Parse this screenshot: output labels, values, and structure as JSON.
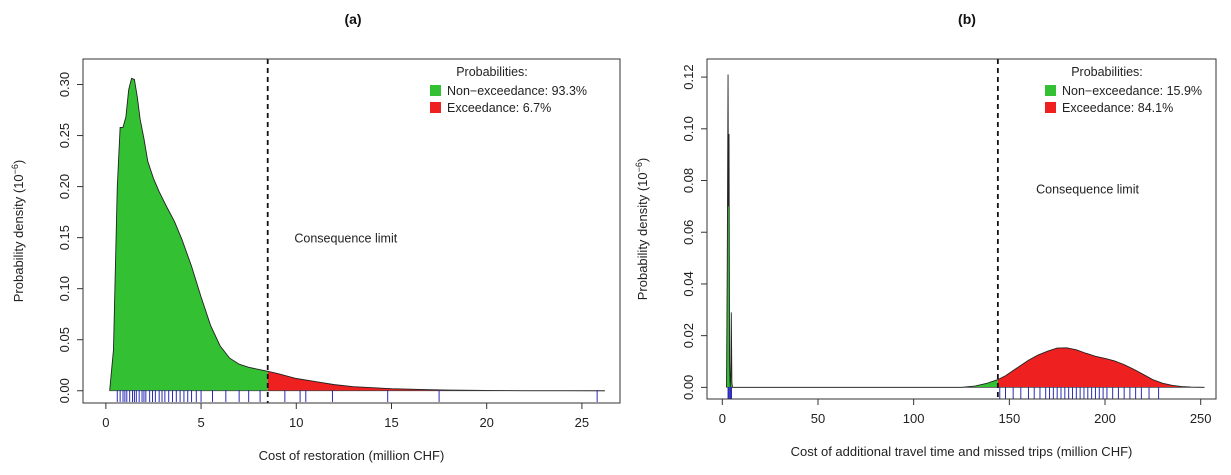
{
  "chart_data": [
    {
      "type": "area",
      "panel_label": "(a)",
      "xlabel": "Cost of restoration (million CHF)",
      "ylabel_prefix": "Probability density (10",
      "ylabel_exponent": "−6",
      "ylabel_suffix": ")",
      "xlim": [
        -1.2,
        27
      ],
      "ylim": [
        -0.012,
        0.325
      ],
      "xticks": [
        0,
        5,
        10,
        15,
        20,
        25
      ],
      "xtick_labels": [
        "0",
        "5",
        "10",
        "15",
        "20",
        "25"
      ],
      "yticks": [
        0.0,
        0.05,
        0.1,
        0.15,
        0.2,
        0.25,
        0.3
      ],
      "ytick_labels": [
        "0.00",
        "0.05",
        "0.10",
        "0.15",
        "0.20",
        "0.25",
        "0.30"
      ],
      "threshold": 8.5,
      "threshold_label": "Consequence limit",
      "annotation_pos": [
        9.9,
        0.145
      ],
      "legend_title": "Probabilities:",
      "legend_position": "top-right",
      "series": [
        {
          "name": "Non−exceedance: 93.3%",
          "color": "#33c033",
          "role": "below_threshold"
        },
        {
          "name": "Exceedance: 6.7%",
          "color": "#ee2020",
          "role": "above_threshold"
        }
      ],
      "density": {
        "x": [
          0.2,
          0.4,
          0.6,
          0.75,
          0.9,
          1.05,
          1.2,
          1.35,
          1.5,
          1.65,
          1.8,
          2.0,
          2.2,
          2.5,
          2.8,
          3.2,
          3.6,
          4.0,
          4.5,
          5.0,
          5.5,
          6.0,
          6.5,
          7.0,
          7.5,
          8.0,
          8.5,
          9.0,
          10.0,
          11.0,
          12.0,
          13.0,
          14.0,
          15.0,
          16.0,
          17.0,
          18.0,
          20.0,
          22.0,
          24.0,
          26.2
        ],
        "y": [
          0.0,
          0.04,
          0.2,
          0.258,
          0.258,
          0.268,
          0.295,
          0.306,
          0.305,
          0.288,
          0.266,
          0.247,
          0.225,
          0.208,
          0.195,
          0.18,
          0.166,
          0.148,
          0.122,
          0.092,
          0.064,
          0.044,
          0.032,
          0.026,
          0.023,
          0.021,
          0.019,
          0.017,
          0.012,
          0.009,
          0.006,
          0.004,
          0.003,
          0.002,
          0.0015,
          0.001,
          0.0007,
          0.0003,
          0.0001,
          5e-05,
          0.0
        ]
      },
      "rug": [
        0.6,
        0.75,
        0.9,
        1.0,
        1.1,
        1.25,
        1.4,
        1.5,
        1.6,
        1.75,
        1.9,
        2.0,
        2.1,
        2.3,
        2.45,
        2.6,
        2.8,
        2.95,
        3.1,
        3.3,
        3.5,
        3.7,
        3.9,
        4.1,
        4.3,
        4.5,
        4.75,
        5.0,
        5.6,
        6.3,
        7.0,
        7.5,
        8.1,
        9.4,
        10.2,
        10.5,
        11.9,
        14.8,
        17.5,
        25.8
      ]
    },
    {
      "type": "area",
      "panel_label": "(b)",
      "xlabel": "Cost of additional travel time and missed trips (million CHF)",
      "ylabel_prefix": "Probability density (10",
      "ylabel_exponent": "−6",
      "ylabel_suffix": ")",
      "xlim": [
        -8,
        258
      ],
      "ylim": [
        -0.0045,
        0.127
      ],
      "xticks": [
        0,
        50,
        100,
        150,
        200,
        250
      ],
      "xtick_labels": [
        "0",
        "50",
        "100",
        "150",
        "200",
        "250"
      ],
      "yticks": [
        0.0,
        0.02,
        0.04,
        0.06,
        0.08,
        0.1,
        0.12
      ],
      "ytick_labels": [
        "0.00",
        "0.02",
        "0.04",
        "0.06",
        "0.08",
        "0.10",
        "0.12"
      ],
      "threshold": 144,
      "threshold_label": "Consequence limit",
      "annotation_pos": [
        164,
        0.075
      ],
      "legend_title": "Probabilities:",
      "legend_position": "top-right",
      "series": [
        {
          "name": "Non−exceedance: 15.9%",
          "color": "#33c033",
          "role": "below_threshold"
        },
        {
          "name": "Exceedance: 84.1%",
          "color": "#ee2020",
          "role": "above_threshold"
        }
      ],
      "density": {
        "x": [
          2.2,
          2.6,
          3.0,
          3.2,
          3.5,
          3.8,
          4.1,
          4.4,
          4.7,
          5.0,
          5.3,
          5.6,
          6.0,
          6.5,
          8,
          20,
          60,
          100,
          125,
          132,
          138,
          142,
          144,
          148,
          152,
          156,
          160,
          165,
          170,
          175,
          180,
          185,
          190,
          195,
          200,
          205,
          210,
          215,
          220,
          225,
          230,
          235,
          240,
          245,
          252
        ],
        "y": [
          0.0,
          0.05,
          0.121,
          0.07,
          0.098,
          0.01,
          0.0,
          0.004,
          0.029,
          0.002,
          0.0,
          0.0,
          0.0,
          0.0,
          0.0,
          0.0,
          0.0,
          0.0,
          0.0,
          0.0005,
          0.0015,
          0.0025,
          0.003,
          0.0045,
          0.0065,
          0.0085,
          0.0105,
          0.0125,
          0.014,
          0.0152,
          0.0153,
          0.0145,
          0.0132,
          0.012,
          0.0112,
          0.0102,
          0.0088,
          0.007,
          0.005,
          0.003,
          0.0016,
          0.0008,
          0.0003,
          0.0001,
          0.0
        ]
      },
      "rug": [
        3.0,
        3.4,
        3.9,
        4.3,
        4.8,
        145,
        148,
        152,
        156,
        160,
        163,
        166,
        169,
        171,
        173,
        175,
        177,
        179,
        181,
        183,
        185,
        187,
        189,
        191,
        193,
        195,
        197,
        199,
        201,
        204,
        207,
        210,
        213,
        216,
        219,
        223,
        228
      ]
    }
  ]
}
